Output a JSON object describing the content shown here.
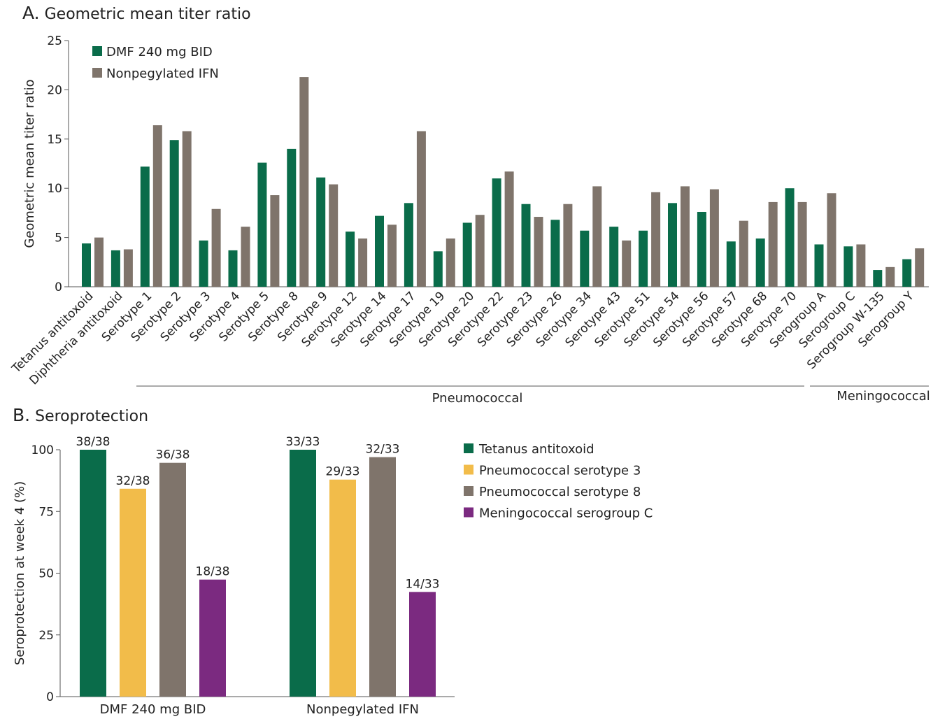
{
  "chart_data": [
    {
      "type": "bar",
      "panel_letter": "A.",
      "title": "Geometric mean titer ratio",
      "ylabel": "Geometric mean titer ratio",
      "xlabel": "",
      "ylim": [
        0,
        25
      ],
      "yticks": [
        0,
        5,
        10,
        15,
        20,
        25
      ],
      "categories": [
        "Tetanus antitoxoid",
        "Diphtheria antitoxoid",
        "Serotype 1",
        "Serotype 2",
        "Serotype 3",
        "Serotype 4",
        "Serotype 5",
        "Serotype 8",
        "Serotype 9",
        "Serotype 12",
        "Serotype 14",
        "Serotype 17",
        "Serotype 19",
        "Serotype 20",
        "Serotype 22",
        "Serotype 23",
        "Serotype 26",
        "Serotype 34",
        "Serotype 43",
        "Serotype 51",
        "Serotype 54",
        "Serotype 56",
        "Serotype 57",
        "Serotype 68",
        "Serotype 70",
        "Serogroup A",
        "Serogroup C",
        "Serogroup W-135",
        "Serogroup Y"
      ],
      "series": [
        {
          "name": "DMF 240 mg BID",
          "color": "#0a6c4a",
          "values": [
            4.4,
            3.7,
            12.2,
            14.9,
            4.7,
            3.7,
            12.6,
            14.0,
            11.1,
            5.6,
            7.2,
            8.5,
            3.6,
            6.5,
            11.0,
            8.4,
            6.8,
            5.7,
            6.1,
            5.7,
            8.5,
            7.6,
            4.6,
            4.9,
            10.0,
            4.3,
            4.1,
            1.7,
            2.8
          ]
        },
        {
          "name": "Nonpegylated IFN",
          "color": "#7f746b",
          "values": [
            5.0,
            3.8,
            16.4,
            15.8,
            7.9,
            6.1,
            9.3,
            21.3,
            10.4,
            4.9,
            6.3,
            15.8,
            4.9,
            7.3,
            11.7,
            7.1,
            8.4,
            10.2,
            4.7,
            9.6,
            10.2,
            9.9,
            6.7,
            8.6,
            8.6,
            9.5,
            4.3,
            2.0,
            3.9
          ]
        }
      ],
      "groups": [
        {
          "label": "Pneumococcal",
          "from": "Serotype 1",
          "to": "Serotype 70"
        },
        {
          "label": "Meningococcal",
          "from": "Serogroup A",
          "to": "Serogroup Y"
        }
      ],
      "legend_position": "top-left"
    },
    {
      "type": "bar",
      "panel_letter": "B.",
      "title": "Seroprotection",
      "ylabel": "Seroprotection at week 4 (%)",
      "xlabel": "",
      "ylim": [
        0,
        100
      ],
      "yticks": [
        0,
        25,
        50,
        75,
        100
      ],
      "categories": [
        "DMF 240 mg BID",
        "Nonpegylated IFN"
      ],
      "series": [
        {
          "name": "Tetanus antitoxoid",
          "color": "#0a6c4a",
          "values": [
            100,
            100
          ],
          "labels": [
            "38/38",
            "33/33"
          ]
        },
        {
          "name": "Pneumococcal serotype 3",
          "color": "#f2bc4a",
          "values": [
            84.2,
            87.9
          ],
          "labels": [
            "32/38",
            "29/33"
          ]
        },
        {
          "name": "Pneumococcal serotype 8",
          "color": "#7f746b",
          "values": [
            94.7,
            97.0
          ],
          "labels": [
            "36/38",
            "32/33"
          ]
        },
        {
          "name": "Meningococcal serogroup C",
          "color": "#7b2a80",
          "values": [
            47.4,
            42.4
          ],
          "labels": [
            "18/38",
            "14/33"
          ]
        }
      ],
      "legend_position": "right"
    }
  ]
}
